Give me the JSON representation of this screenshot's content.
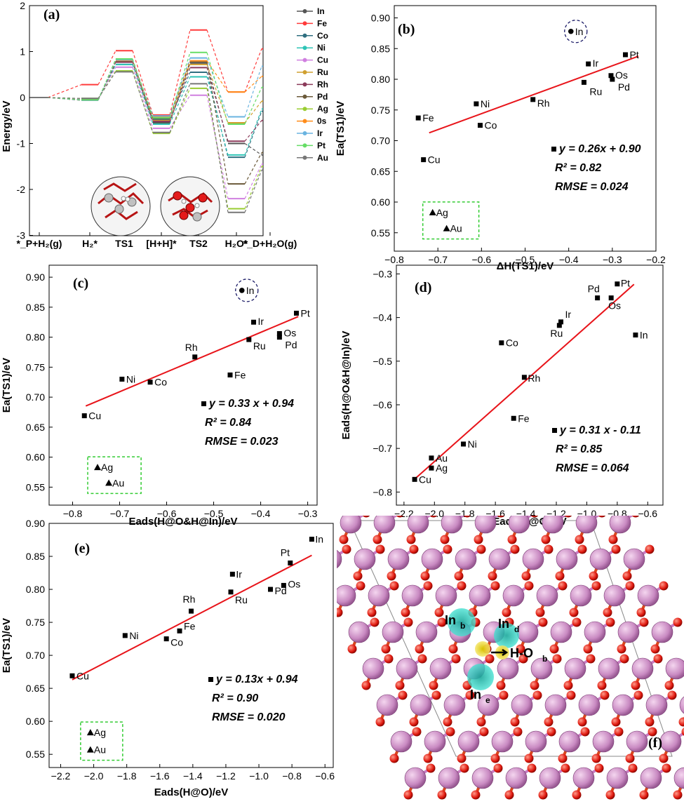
{
  "colors": {
    "fit": "#e8141a",
    "box": "#33cc33",
    "circle": "#1a1a66",
    "point": "#000000"
  },
  "panel_a": {
    "label": "(a)",
    "ylabel": "Energy/eV",
    "yticks": [
      "2",
      "1",
      "0",
      "-1",
      "-2",
      "-3"
    ],
    "xcats": [
      "*_P+H₂(g)",
      "H₂*",
      "TS1",
      "[H+H]*",
      "TS2",
      "H₂O*",
      "*_D+H₂O(g)"
    ],
    "icons": [
      "slab-structure-left",
      "slab-structure-right"
    ]
  },
  "panel_f": {
    "label": "(f)",
    "annotations": [
      "In",
      "b",
      "In",
      "d",
      "H-O",
      "b",
      "In",
      "e"
    ]
  },
  "chart_data": [
    {
      "id": "a",
      "type": "line",
      "title": "",
      "xlabel": "",
      "ylabel": "Energy/eV",
      "ylim": [
        -3,
        2
      ],
      "categories": [
        "*_P+H2(g)",
        "H2*",
        "TS1",
        "[H+H]*",
        "TS2",
        "H2O*",
        "*_D+H2O(g)"
      ],
      "legend_position": "right",
      "series": [
        {
          "name": "In",
          "color": "#555555",
          "values": [
            0,
            -0.05,
            0.8,
            -0.55,
            0.75,
            -1.0,
            -1.25
          ]
        },
        {
          "name": "Fe",
          "color": "#ff3b3b",
          "values": [
            0,
            0.28,
            1.02,
            -0.38,
            1.47,
            0.12,
            1.06
          ]
        },
        {
          "name": "Co",
          "color": "#2f6f80",
          "values": [
            0,
            -0.05,
            0.72,
            -0.48,
            0.55,
            -1.3,
            -0.3
          ]
        },
        {
          "name": "Ni",
          "color": "#2ec4b6",
          "values": [
            0,
            -0.03,
            0.72,
            -0.58,
            0.45,
            -1.25,
            -0.25
          ]
        },
        {
          "name": "Cu",
          "color": "#d080e0",
          "values": [
            0,
            -0.03,
            0.66,
            -0.67,
            0.05,
            -2.2,
            -1.45
          ]
        },
        {
          "name": "Ru",
          "color": "#d0a030",
          "values": [
            0,
            -0.06,
            0.8,
            -0.5,
            0.72,
            -0.55,
            -0.08
          ]
        },
        {
          "name": "Rh",
          "color": "#8b3a5a",
          "values": [
            0,
            -0.06,
            0.77,
            -0.52,
            0.65,
            -0.95,
            -0.5
          ]
        },
        {
          "name": "Pd",
          "color": "#6b5a3a",
          "values": [
            0,
            -0.05,
            0.8,
            -0.45,
            0.78,
            -1.88,
            -1.2
          ]
        },
        {
          "name": "Ag",
          "color": "#9acd32",
          "values": [
            0,
            -0.02,
            0.58,
            -0.78,
            0.2,
            -2.42,
            -1.5
          ]
        },
        {
          "name": "0s",
          "color": "#ff8c1a",
          "values": [
            0,
            -0.06,
            0.81,
            -0.42,
            0.8,
            0.12,
            0.46
          ]
        },
        {
          "name": "Ir",
          "color": "#6ab4e0",
          "values": [
            0,
            -0.06,
            0.82,
            -0.4,
            0.86,
            -0.42,
            0.68
          ]
        },
        {
          "name": "Pt",
          "color": "#66dd66",
          "values": [
            0,
            -0.05,
            0.84,
            -0.44,
            0.98,
            -0.58,
            0.22
          ]
        },
        {
          "name": "Au",
          "color": "#777777",
          "values": [
            0,
            -0.02,
            0.56,
            -0.76,
            0.3,
            -2.5,
            -1.58
          ]
        }
      ]
    },
    {
      "id": "b",
      "type": "scatter",
      "label": "(b)",
      "xlabel": "ΔH(TS1)/eV",
      "ylabel": "Ea(TS1)/eV",
      "xlim": [
        -0.8,
        -0.2
      ],
      "ylim": [
        0.52,
        0.92
      ],
      "xticks": [
        -0.8,
        -0.7,
        -0.6,
        -0.5,
        -0.4,
        -0.3,
        -0.2
      ],
      "yticks": [
        0.55,
        0.6,
        0.65,
        0.7,
        0.75,
        0.8,
        0.85,
        0.9
      ],
      "tick_labels_x": [
        "−0.8",
        "−0.7",
        "−0.6",
        "−0.5",
        "−0.4",
        "−0.3",
        "−0.2"
      ],
      "tick_labels_y": [
        "0.55",
        "0.60",
        "0.65",
        "0.70",
        "0.75",
        "0.80",
        "0.85",
        "0.90"
      ],
      "fit": {
        "slope": 0.26,
        "intercept": 0.9,
        "x_range": [
          -0.72,
          -0.24
        ]
      },
      "equation": "y = 0.26x + 0.90",
      "r2": "R² = 0.82",
      "rmse": "RMSE = 0.024",
      "points": [
        {
          "label": "In",
          "x": -0.395,
          "y": 0.878,
          "marker": "dot",
          "circled": true
        },
        {
          "label": "Pt",
          "x": -0.27,
          "y": 0.84,
          "marker": "square"
        },
        {
          "label": "Ir",
          "x": -0.355,
          "y": 0.825,
          "marker": "square"
        },
        {
          "label": "Os",
          "x": -0.303,
          "y": 0.806,
          "marker": "square"
        },
        {
          "label": "Pd",
          "x": -0.3,
          "y": 0.8,
          "marker": "square"
        },
        {
          "label": "Ru",
          "x": -0.365,
          "y": 0.795,
          "marker": "square"
        },
        {
          "label": "Rh",
          "x": -0.482,
          "y": 0.767,
          "marker": "square"
        },
        {
          "label": "Ni",
          "x": -0.612,
          "y": 0.76,
          "marker": "square"
        },
        {
          "label": "Fe",
          "x": -0.745,
          "y": 0.737,
          "marker": "square"
        },
        {
          "label": "Co",
          "x": -0.603,
          "y": 0.725,
          "marker": "square"
        },
        {
          "label": "Cu",
          "x": -0.733,
          "y": 0.669,
          "marker": "square"
        },
        {
          "label": "Ag",
          "x": -0.712,
          "y": 0.583,
          "marker": "triangle",
          "boxed": true
        },
        {
          "label": "Au",
          "x": -0.68,
          "y": 0.557,
          "marker": "triangle",
          "boxed": true
        }
      ]
    },
    {
      "id": "c",
      "type": "scatter",
      "label": "(c)",
      "xlabel": "Eads(H@O&H@In)/eV",
      "ylabel": "Ea(TS1)/eV",
      "xlim": [
        -0.85,
        -0.28
      ],
      "ylim": [
        0.52,
        0.92
      ],
      "xticks": [
        -0.8,
        -0.7,
        -0.6,
        -0.5,
        -0.4,
        -0.3
      ],
      "yticks": [
        0.55,
        0.6,
        0.65,
        0.7,
        0.75,
        0.8,
        0.85,
        0.9
      ],
      "tick_labels_x": [
        "−0.8",
        "−0.7",
        "−0.6",
        "−0.5",
        "−0.4",
        "−0.3"
      ],
      "tick_labels_y": [
        "0.55",
        "0.60",
        "0.65",
        "0.70",
        "0.75",
        "0.80",
        "0.85",
        "0.90"
      ],
      "fit": {
        "slope": 0.33,
        "intercept": 0.94,
        "x_range": [
          -0.772,
          -0.32
        ]
      },
      "equation": "y = 0.33 x + 0.94",
      "r2": "R² = 0.84",
      "rmse": "RMSE = 0.023",
      "points": [
        {
          "label": "In",
          "x": -0.44,
          "y": 0.878,
          "marker": "dot",
          "circled": true
        },
        {
          "label": "Pt",
          "x": -0.324,
          "y": 0.84,
          "marker": "square"
        },
        {
          "label": "Ir",
          "x": -0.415,
          "y": 0.825,
          "marker": "square"
        },
        {
          "label": "Os",
          "x": -0.36,
          "y": 0.806,
          "marker": "square"
        },
        {
          "label": "Pd",
          "x": -0.36,
          "y": 0.8,
          "marker": "square"
        },
        {
          "label": "Ru",
          "x": -0.425,
          "y": 0.796,
          "marker": "square"
        },
        {
          "label": "Rh",
          "x": -0.54,
          "y": 0.767,
          "marker": "square"
        },
        {
          "label": "Fe",
          "x": -0.465,
          "y": 0.737,
          "marker": "square"
        },
        {
          "label": "Ni",
          "x": -0.695,
          "y": 0.73,
          "marker": "square"
        },
        {
          "label": "Co",
          "x": -0.635,
          "y": 0.725,
          "marker": "square"
        },
        {
          "label": "Cu",
          "x": -0.775,
          "y": 0.669,
          "marker": "square"
        },
        {
          "label": "Ag",
          "x": -0.747,
          "y": 0.583,
          "marker": "triangle",
          "boxed": true
        },
        {
          "label": "Au",
          "x": -0.723,
          "y": 0.557,
          "marker": "triangle",
          "boxed": true
        }
      ]
    },
    {
      "id": "d",
      "type": "scatter",
      "label": "(d)",
      "xlabel": "Eads(H@O)/eV",
      "ylabel": "Eads(H@O&H@In)/eV",
      "xlim": [
        -2.25,
        -0.5
      ],
      "ylim": [
        -0.83,
        -0.28
      ],
      "xticks": [
        -2.2,
        -2.0,
        -1.8,
        -1.6,
        -1.4,
        -1.2,
        -1.0,
        -0.8,
        -0.6
      ],
      "yticks": [
        -0.8,
        -0.7,
        -0.6,
        -0.5,
        -0.4,
        -0.3
      ],
      "tick_labels_x": [
        "−2.2",
        "−2.0",
        "−1.8",
        "−1.6",
        "−1.4",
        "−1.2",
        "−1.0",
        "−0.8",
        "−0.6"
      ],
      "tick_labels_y": [
        "−0.8",
        "−0.7",
        "−0.6",
        "−0.5",
        "−0.4",
        "−0.3"
      ],
      "fit": {
        "slope": 0.31,
        "intercept": -0.11,
        "x_range": [
          -2.13,
          -0.69
        ]
      },
      "equation": "y = 0.31 x - 0.11",
      "r2": "R² = 0.85",
      "rmse": "RMSE = 0.064",
      "points": [
        {
          "label": "Pt",
          "x": -0.8,
          "y": -0.323,
          "marker": "square"
        },
        {
          "label": "Pd",
          "x": -0.93,
          "y": -0.355,
          "marker": "square"
        },
        {
          "label": "Os",
          "x": -0.84,
          "y": -0.355,
          "marker": "square"
        },
        {
          "label": "Ir",
          "x": -1.17,
          "y": -0.41,
          "marker": "square"
        },
        {
          "label": "Ru",
          "x": -1.18,
          "y": -0.418,
          "marker": "square"
        },
        {
          "label": "In",
          "x": -0.68,
          "y": -0.44,
          "marker": "square"
        },
        {
          "label": "Co",
          "x": -1.56,
          "y": -0.458,
          "marker": "square"
        },
        {
          "label": "Rh",
          "x": -1.41,
          "y": -0.537,
          "marker": "square"
        },
        {
          "label": "Fe",
          "x": -1.48,
          "y": -0.631,
          "marker": "square"
        },
        {
          "label": "Ni",
          "x": -1.81,
          "y": -0.69,
          "marker": "square"
        },
        {
          "label": "Au",
          "x": -2.02,
          "y": -0.722,
          "marker": "square"
        },
        {
          "label": "Ag",
          "x": -2.02,
          "y": -0.745,
          "marker": "square"
        },
        {
          "label": "Cu",
          "x": -2.13,
          "y": -0.771,
          "marker": "square"
        }
      ]
    },
    {
      "id": "e",
      "type": "scatter",
      "label": "(e)",
      "xlabel": "Eads(H@O)/eV",
      "ylabel": "Ea(TS1)/eV",
      "xlim": [
        -2.27,
        -0.55
      ],
      "ylim": [
        0.53,
        0.9
      ],
      "xticks": [
        -2.2,
        -2.0,
        -1.8,
        -1.6,
        -1.4,
        -1.2,
        -1.0,
        -0.8,
        -0.6
      ],
      "yticks": [
        0.55,
        0.6,
        0.65,
        0.7,
        0.75,
        0.8,
        0.85,
        0.9
      ],
      "tick_labels_x": [
        "−2.2",
        "−2.0",
        "−1.8",
        "−1.6",
        "−1.4",
        "−1.2",
        "−1.0",
        "−0.8",
        "−0.6"
      ],
      "tick_labels_y": [
        "0.55",
        "0.60",
        "0.65",
        "0.70",
        "0.75",
        "0.80",
        "0.85",
        "0.90"
      ],
      "fit": {
        "slope": 0.13,
        "intercept": 0.94,
        "x_range": [
          -2.13,
          -0.68
        ]
      },
      "equation": "y = 0.13x + 0.94",
      "r2": "R² = 0.90",
      "rmse": "RMSE = 0.020",
      "points": [
        {
          "label": "In",
          "x": -0.68,
          "y": 0.876,
          "marker": "square"
        },
        {
          "label": "Pt",
          "x": -0.81,
          "y": 0.84,
          "marker": "square"
        },
        {
          "label": "Os",
          "x": -0.85,
          "y": 0.806,
          "marker": "square"
        },
        {
          "label": "Pd",
          "x": -0.93,
          "y": 0.8,
          "marker": "square"
        },
        {
          "label": "Ir",
          "x": -1.16,
          "y": 0.823,
          "marker": "square"
        },
        {
          "label": "Ru",
          "x": -1.17,
          "y": 0.796,
          "marker": "square"
        },
        {
          "label": "Rh",
          "x": -1.41,
          "y": 0.767,
          "marker": "square"
        },
        {
          "label": "Fe",
          "x": -1.48,
          "y": 0.737,
          "marker": "square"
        },
        {
          "label": "Co",
          "x": -1.56,
          "y": 0.725,
          "marker": "square"
        },
        {
          "label": "Ni",
          "x": -1.81,
          "y": 0.73,
          "marker": "square"
        },
        {
          "label": "Cu",
          "x": -2.13,
          "y": 0.669,
          "marker": "square"
        },
        {
          "label": "Ag",
          "x": -2.02,
          "y": 0.583,
          "marker": "triangle",
          "boxed": true
        },
        {
          "label": "Au",
          "x": -2.02,
          "y": 0.557,
          "marker": "triangle",
          "boxed": true
        }
      ]
    }
  ]
}
